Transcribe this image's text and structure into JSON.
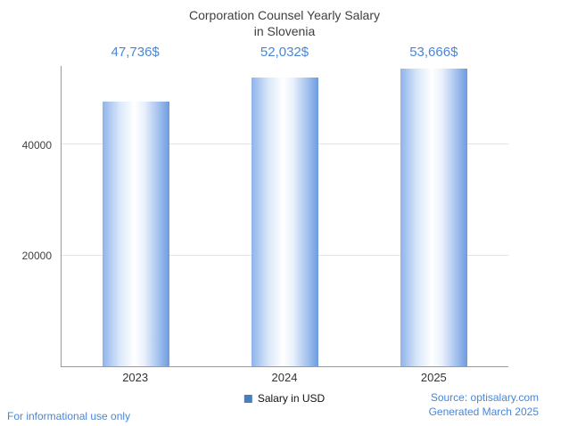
{
  "chart_data": {
    "type": "bar",
    "title": "Corporation Counsel Yearly Salary in Slovenia",
    "title_line1": "Corporation Counsel Yearly Salary",
    "title_line2": "in Slovenia",
    "categories": [
      "2023",
      "2024",
      "2025"
    ],
    "values": [
      47736,
      52032,
      53666
    ],
    "value_labels": [
      "47,736$",
      "52,032$",
      "53,666$"
    ],
    "ylabel": "",
    "xlabel": "",
    "ylim": [
      0,
      54200
    ],
    "yticks": [
      20000,
      40000
    ],
    "ytick_labels": [
      "20000",
      "40000"
    ],
    "grid": "horizontal",
    "legend_position": "bottom-center",
    "series": [
      {
        "name": "Salary in USD",
        "values": [
          47736,
          52032,
          53666
        ],
        "color": "#4a7ebb"
      }
    ]
  },
  "title": {
    "line1": "Corporation Counsel Yearly Salary",
    "line2": "in Slovenia"
  },
  "legend": {
    "label": "Salary in USD"
  },
  "footer": {
    "disclaimer": "For informational use only",
    "source": "Source: optisalary.com",
    "generated": "Generated March 2025"
  },
  "colors": {
    "accent_blue": "#4a86d8",
    "bar_edge_blue": "#6d9be0",
    "legend_swatch": "#4a7ebb",
    "gridline": "#e3e3e3",
    "axis": "#9a9a9a",
    "title_text": "#404040"
  }
}
